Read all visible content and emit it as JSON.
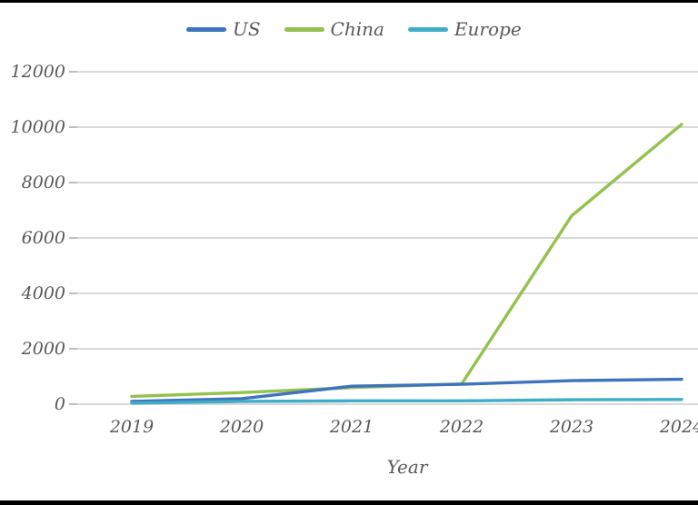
{
  "colors": {
    "us": "#3E73BE",
    "china": "#95C14F",
    "europe": "#3FADC8",
    "grid": "#D9D9D9",
    "tick": "#BFBFBF",
    "text": "#595959",
    "frame": "#000000",
    "background": "#FFFFFF"
  },
  "legend": [
    {
      "id": "us",
      "label": "US",
      "color": "#3E73BE"
    },
    {
      "id": "china",
      "label": "China",
      "color": "#95C14F"
    },
    {
      "id": "europe",
      "label": "Europe",
      "color": "#3FADC8"
    }
  ],
  "chart_data": {
    "type": "line",
    "title": "",
    "xlabel": "Year",
    "ylabel": "",
    "categories": [
      "2019",
      "2020",
      "2021",
      "2022",
      "2023",
      "2024"
    ],
    "y_ticks": [
      0,
      2000,
      4000,
      6000,
      8000,
      10000,
      12000
    ],
    "ylim": [
      0,
      12000
    ],
    "grid": true,
    "legend_position": "top",
    "series": [
      {
        "name": "US",
        "color": "#3E73BE",
        "values": [
          100,
          200,
          650,
          720,
          850,
          900
        ]
      },
      {
        "name": "China",
        "color": "#95C14F",
        "values": [
          280,
          420,
          600,
          730,
          6800,
          10100
        ]
      },
      {
        "name": "Europe",
        "color": "#3FADC8",
        "values": [
          40,
          100,
          120,
          120,
          160,
          170
        ]
      }
    ]
  }
}
